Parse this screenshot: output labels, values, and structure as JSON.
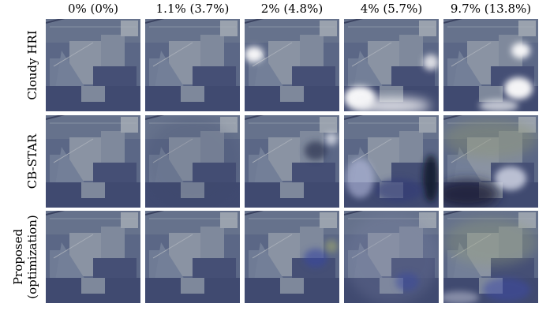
{
  "column_labels": [
    "0% (0%)",
    "1.1% (3.7%)",
    "2% (4.8%)",
    "4% (5.7%)",
    "9.7% (13.8%)"
  ],
  "row_labels": [
    [
      "Cloudy HRI"
    ],
    [
      "CB-STAR"
    ],
    [
      "Proposed",
      "(optimization)"
    ]
  ]
}
